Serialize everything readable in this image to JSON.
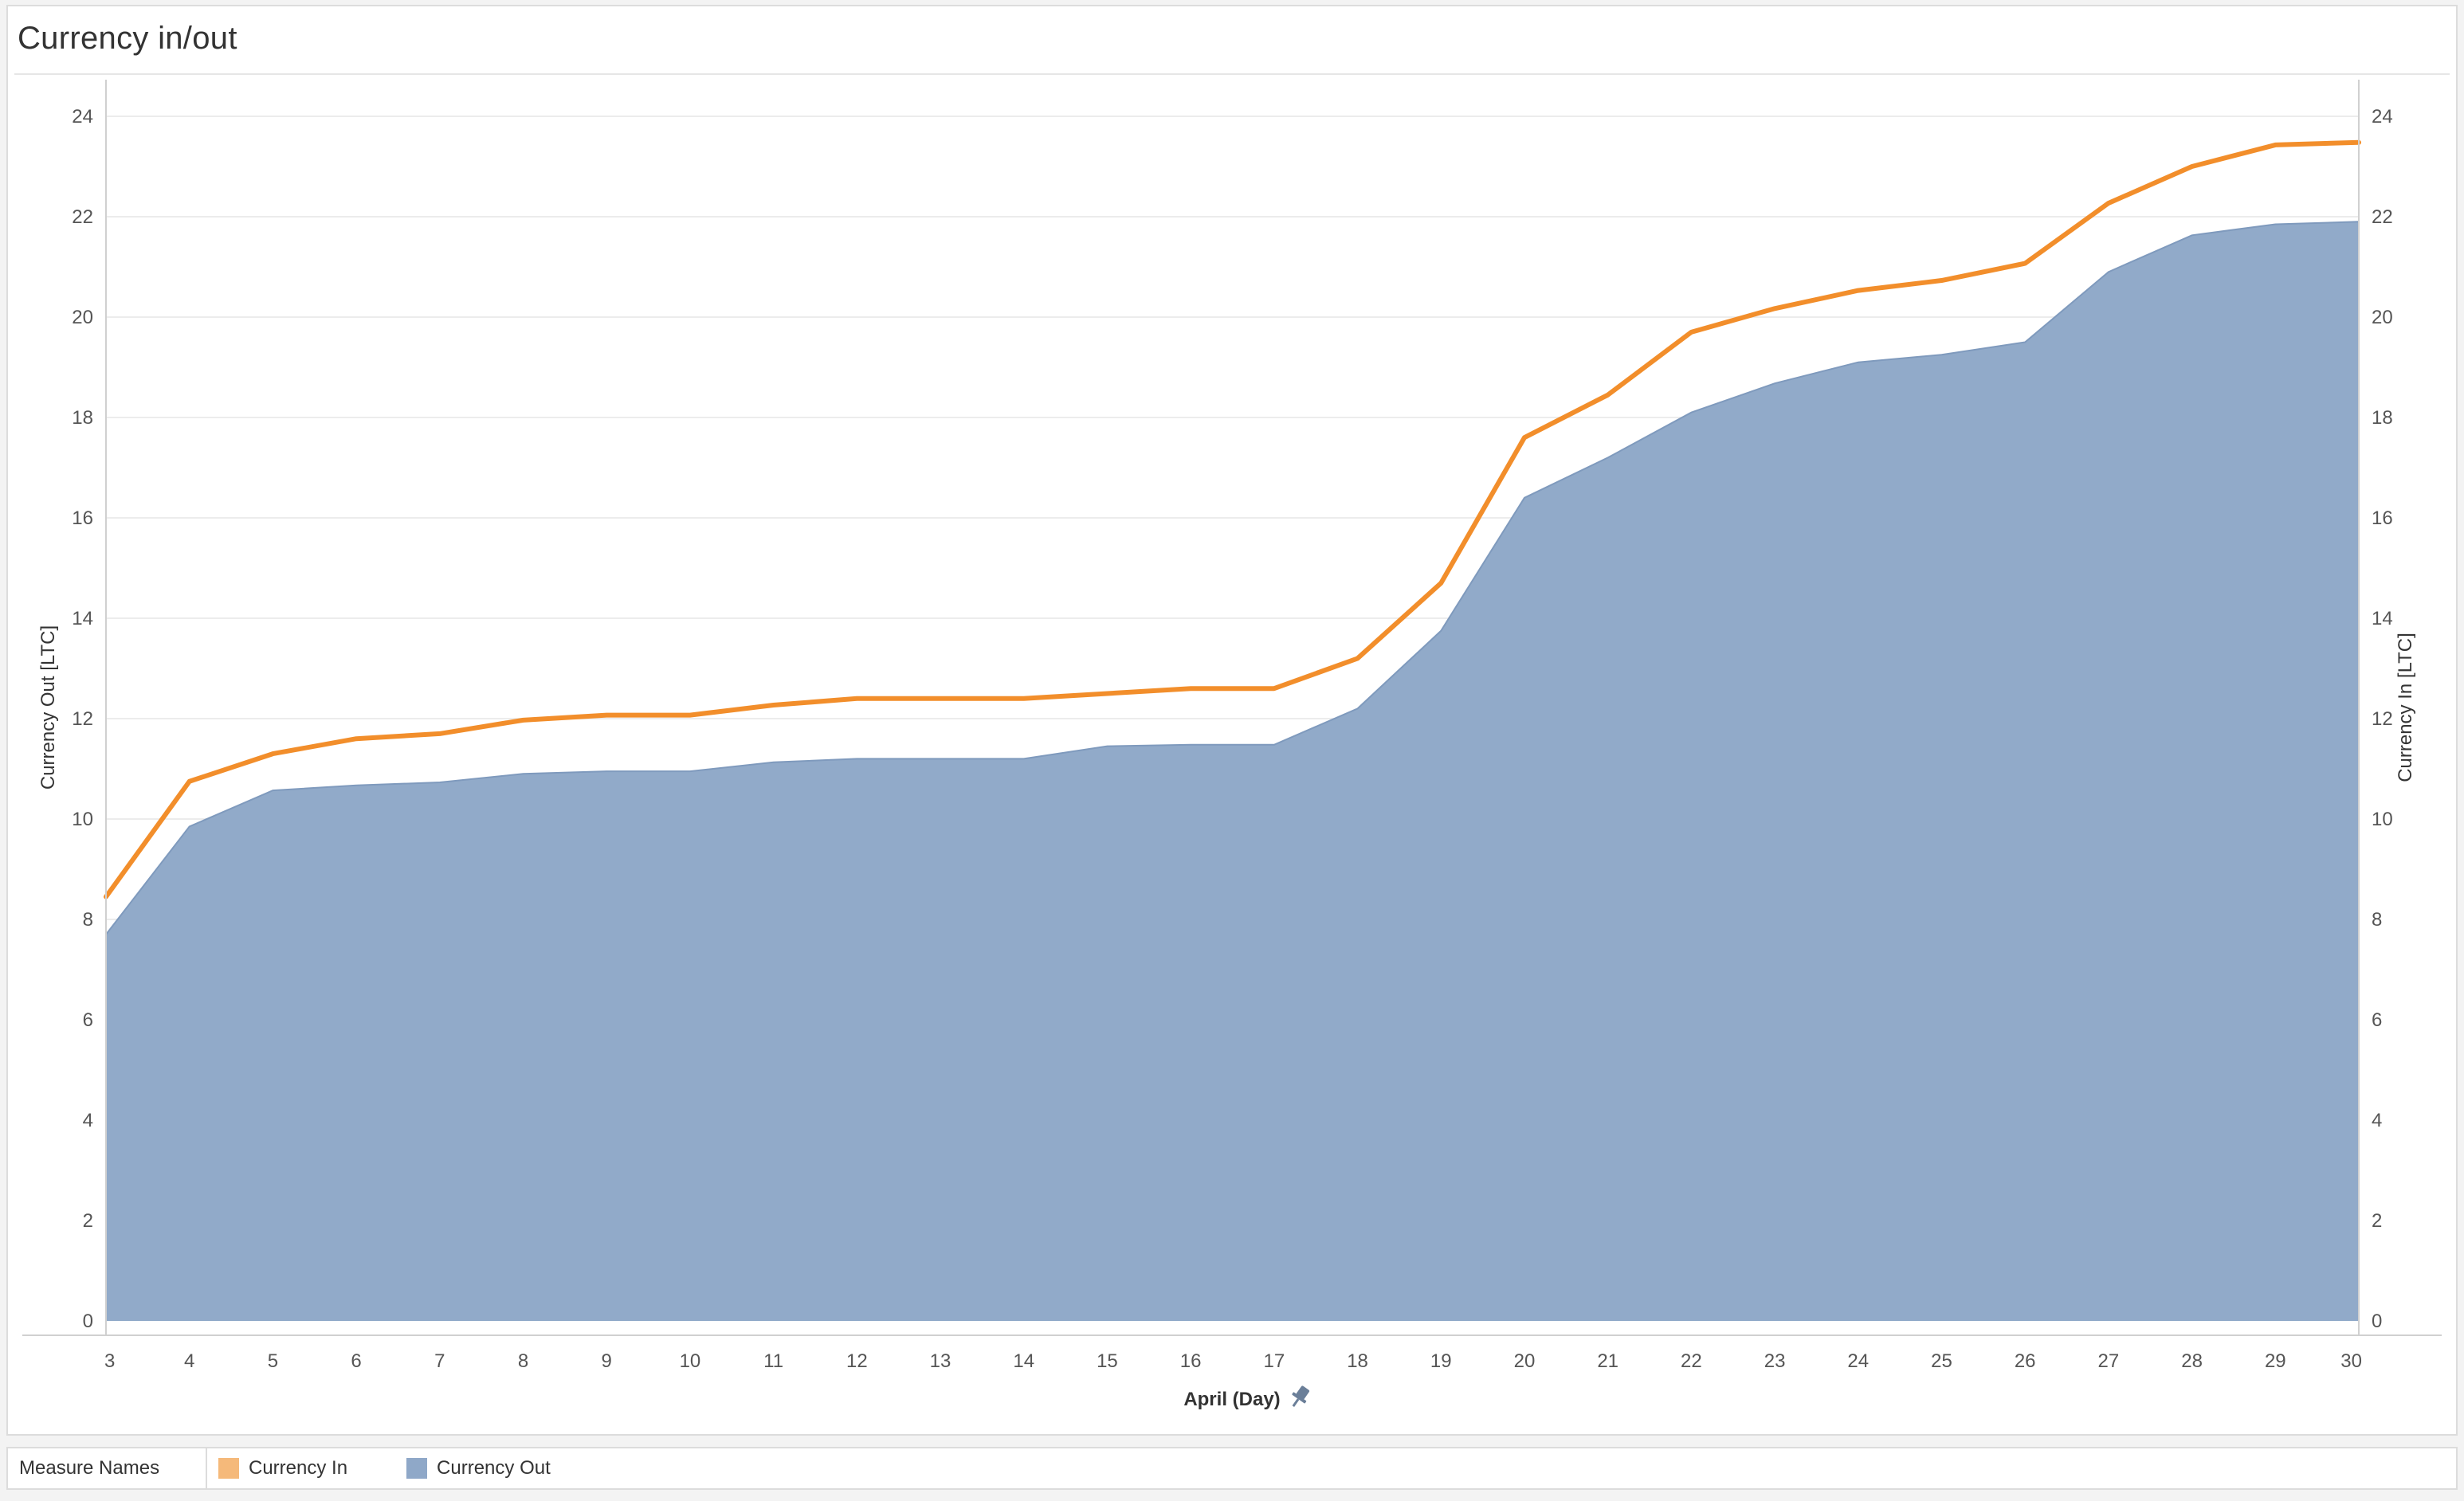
{
  "title": "Currency in/out",
  "legend": {
    "title": "Measure Names",
    "items": [
      {
        "label": "Currency In",
        "color": "#F5B97A"
      },
      {
        "label": "Currency Out",
        "color": "#8FA8C8"
      }
    ]
  },
  "chart_data": {
    "type": "area",
    "xlabel": "April (Day)",
    "ylabel_left": "Currency Out [LTC]",
    "ylabel_right": "Currency In [LTC]",
    "ylim": [
      0,
      24
    ],
    "yticks": [
      0,
      2,
      4,
      6,
      8,
      10,
      12,
      14,
      16,
      18,
      20,
      22,
      24
    ],
    "x": [
      3,
      4,
      5,
      6,
      7,
      8,
      9,
      10,
      11,
      12,
      13,
      14,
      15,
      16,
      17,
      18,
      19,
      20,
      21,
      22,
      23,
      24,
      25,
      26,
      27,
      28,
      29,
      30
    ],
    "grid": true,
    "legend_position": "bottom",
    "series": [
      {
        "name": "Currency In",
        "type": "line",
        "axis": "right",
        "color": "#F28E2B",
        "values": [
          8.45,
          10.75,
          11.3,
          11.6,
          11.7,
          11.97,
          12.07,
          12.07,
          12.27,
          12.4,
          12.4,
          12.4,
          12.5,
          12.6,
          12.6,
          13.2,
          14.7,
          17.6,
          18.45,
          19.7,
          20.17,
          20.53,
          20.73,
          21.07,
          22.27,
          23.0,
          23.43,
          23.48
        ]
      },
      {
        "name": "Currency Out",
        "type": "area",
        "axis": "left",
        "color": "#8FA8C8",
        "values": [
          7.7,
          9.85,
          10.57,
          10.67,
          10.73,
          10.9,
          10.95,
          10.95,
          11.13,
          11.2,
          11.2,
          11.2,
          11.45,
          11.48,
          11.48,
          12.2,
          13.75,
          16.4,
          17.2,
          18.1,
          18.68,
          19.1,
          19.25,
          19.5,
          20.9,
          21.63,
          21.85,
          21.9
        ]
      }
    ]
  }
}
